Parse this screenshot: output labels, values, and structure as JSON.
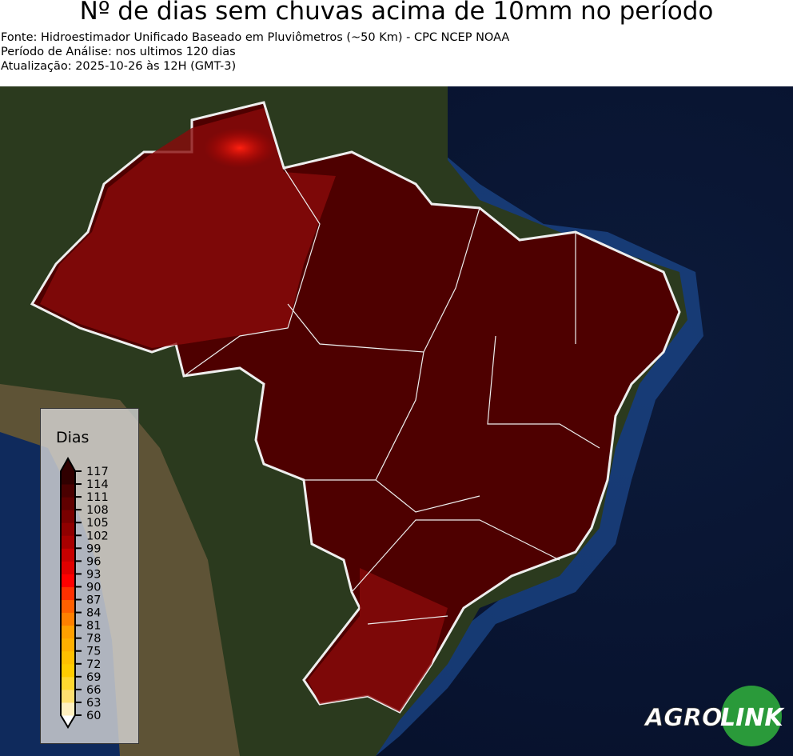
{
  "header": {
    "title": "Nº de dias sem chuvas acima de 10mm no período",
    "source": "Fonte: Hidroestimador Unificado Baseado em Pluviômetros (~50 Km) - CPC NCEP NOAA",
    "period": "Período de Análise: nos ultimos 120 dias",
    "updated": "Atualização: 2025-10-26 às 12H (GMT-3)"
  },
  "legend": {
    "title": "Dias",
    "ticks": [
      "117",
      "114",
      "111",
      "108",
      "105",
      "102",
      "99",
      "96",
      "93",
      "90",
      "87",
      "84",
      "81",
      "78",
      "75",
      "72",
      "69",
      "66",
      "63",
      "60"
    ],
    "colors": [
      "#ffffff",
      "#fff0c0",
      "#ffe070",
      "#ffd830",
      "#ffcc00",
      "#ffc000",
      "#ffb000",
      "#ffa000",
      "#ff8000",
      "#ff6000",
      "#ff3000",
      "#ff0000",
      "#e00000",
      "#c80000",
      "#a80000",
      "#900000",
      "#780000",
      "#600000",
      "#4a0000",
      "#300000"
    ]
  },
  "map": {
    "dominant_range": "108-117+",
    "region": "Brasil"
  },
  "logo": {
    "text_left": "AGRO",
    "text_right": "LINK"
  }
}
